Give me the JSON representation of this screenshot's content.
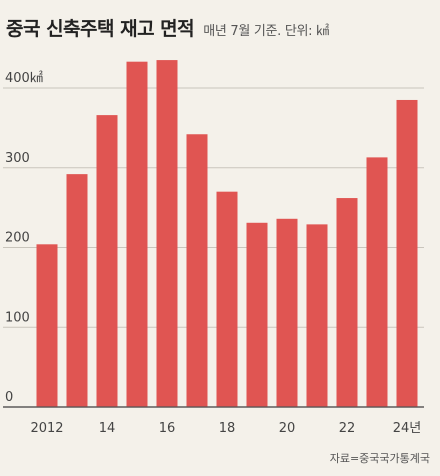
{
  "header": {
    "title": "중국 신축주택 재고 면적",
    "subtitle": "매년 7월 기준. 단위: ㎢"
  },
  "source": "자료=중국국가통계국",
  "colors": {
    "bar": "#e05552",
    "grid": "#c9c5bc",
    "axis": "#555555"
  },
  "chart_data": {
    "type": "bar",
    "title": "중국 신축주택 재고 면적",
    "subtitle": "매년 7월 기준. 단위: ㎢",
    "xlabel": "",
    "ylabel": "",
    "unit": "㎢",
    "ylim": [
      0,
      400
    ],
    "yticks": [
      0,
      100,
      200,
      300,
      400
    ],
    "ytick_labels": [
      "0",
      "100",
      "200",
      "300",
      "400㎢"
    ],
    "categories": [
      "2012",
      "2013",
      "2014",
      "2015",
      "2016",
      "2017",
      "2018",
      "2019",
      "2020",
      "2021",
      "2022",
      "2023",
      "2024"
    ],
    "x_tick_labels": [
      "2012",
      "",
      "14",
      "",
      "16",
      "",
      "18",
      "",
      "20",
      "",
      "22",
      "",
      "24년"
    ],
    "values": [
      204,
      292,
      366,
      433,
      435,
      342,
      270,
      231,
      236,
      229,
      262,
      313,
      385
    ],
    "grid": true
  }
}
